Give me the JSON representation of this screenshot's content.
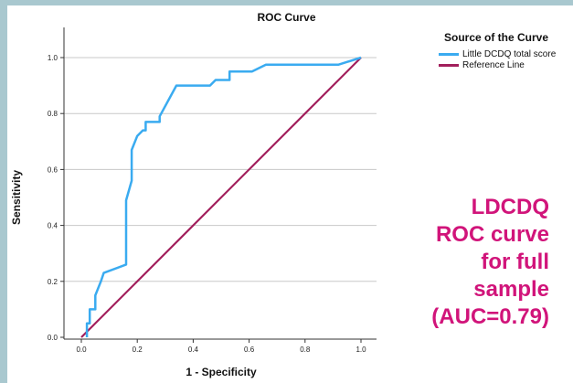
{
  "chart_data": {
    "type": "line",
    "title": "ROC Curve",
    "xlabel": "1 - Specificity",
    "ylabel": "Sensitivity",
    "xlim": [
      0,
      1
    ],
    "ylim": [
      0,
      1
    ],
    "x_ticks": [
      "0.0",
      "0.2",
      "0.4",
      "0.6",
      "0.8",
      "1.0"
    ],
    "y_ticks": [
      "0.0",
      "0.2",
      "0.4",
      "0.6",
      "0.8",
      "1.0"
    ],
    "grid": "horizontal",
    "legend": {
      "title": "Source of the Curve",
      "placement": "top-right"
    },
    "series": [
      {
        "name": "Little DCDQ total score",
        "color": "#3aabf0",
        "x": [
          0.02,
          0.02,
          0.03,
          0.03,
          0.05,
          0.05,
          0.07,
          0.08,
          0.16,
          0.16,
          0.18,
          0.18,
          0.2,
          0.22,
          0.23,
          0.23,
          0.28,
          0.28,
          0.34,
          0.46,
          0.48,
          0.48,
          0.53,
          0.53,
          0.61,
          0.66,
          0.92,
          1.0
        ],
        "y": [
          0.0,
          0.05,
          0.05,
          0.1,
          0.1,
          0.15,
          0.2,
          0.23,
          0.26,
          0.49,
          0.56,
          0.67,
          0.72,
          0.74,
          0.74,
          0.77,
          0.77,
          0.79,
          0.9,
          0.9,
          0.92,
          0.92,
          0.92,
          0.95,
          0.95,
          0.975,
          0.975,
          1.0
        ]
      },
      {
        "name": "Reference Line",
        "color": "#a21f5c",
        "x": [
          0,
          1
        ],
        "y": [
          0,
          1
        ]
      }
    ]
  },
  "annotation": "LDCDQ\nROC curve\nfor full\nsample\n(AUC=0.79)"
}
